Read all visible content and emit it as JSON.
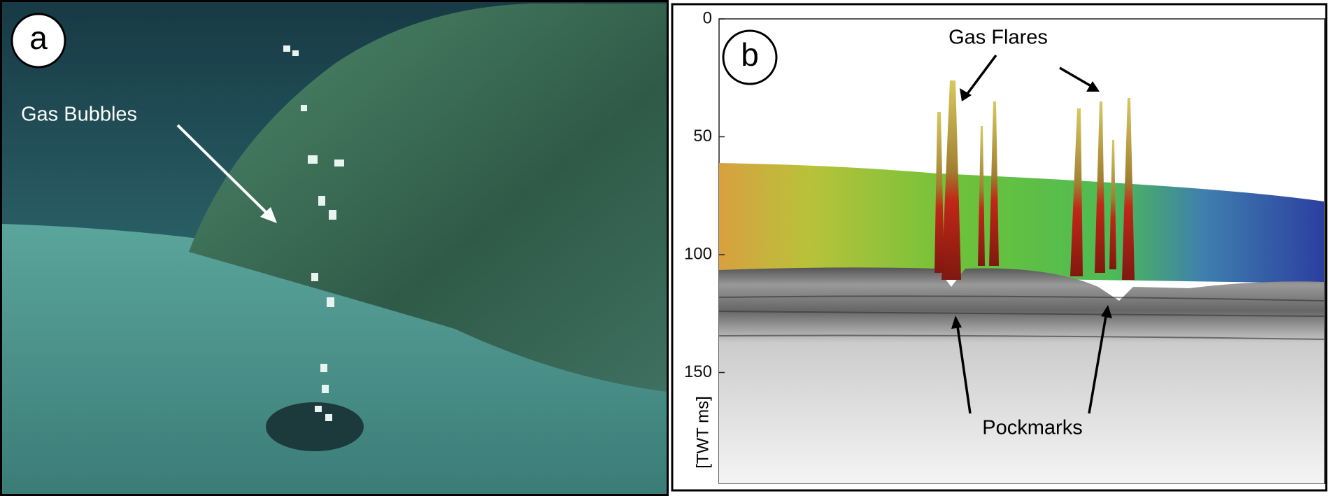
{
  "panel_a": {
    "label": "a",
    "annotation": "Gas Bubbles"
  },
  "panel_b": {
    "label": "b",
    "axis_label": "[TWT ms]",
    "yticks": [
      0,
      50,
      100,
      150
    ],
    "annotations": [
      "Gas Flares",
      "Pockmarks"
    ]
  }
}
